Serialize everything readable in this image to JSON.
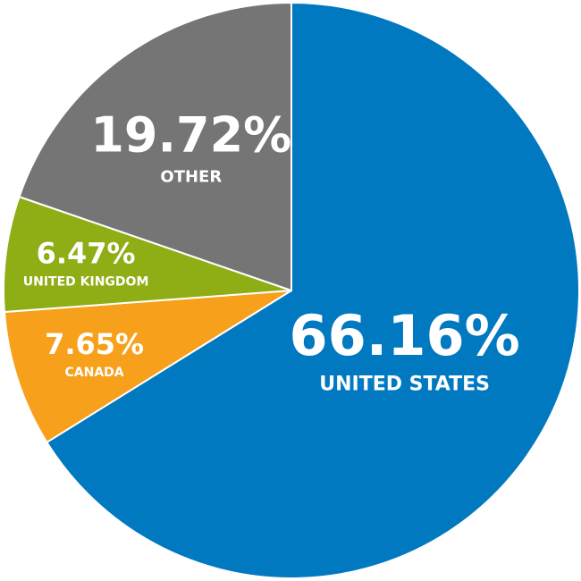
{
  "chart_data": {
    "type": "pie",
    "categories": [
      "UNITED STATES",
      "CANADA",
      "UNITED KINGDOM",
      "OTHER"
    ],
    "values": [
      66.16,
      7.65,
      6.47,
      19.72
    ],
    "value_labels": [
      "66.16%",
      "7.65%",
      "6.47%",
      "19.72%"
    ],
    "colors": [
      "#0079c1",
      "#f7a01b",
      "#8fad15",
      "#757575"
    ]
  }
}
